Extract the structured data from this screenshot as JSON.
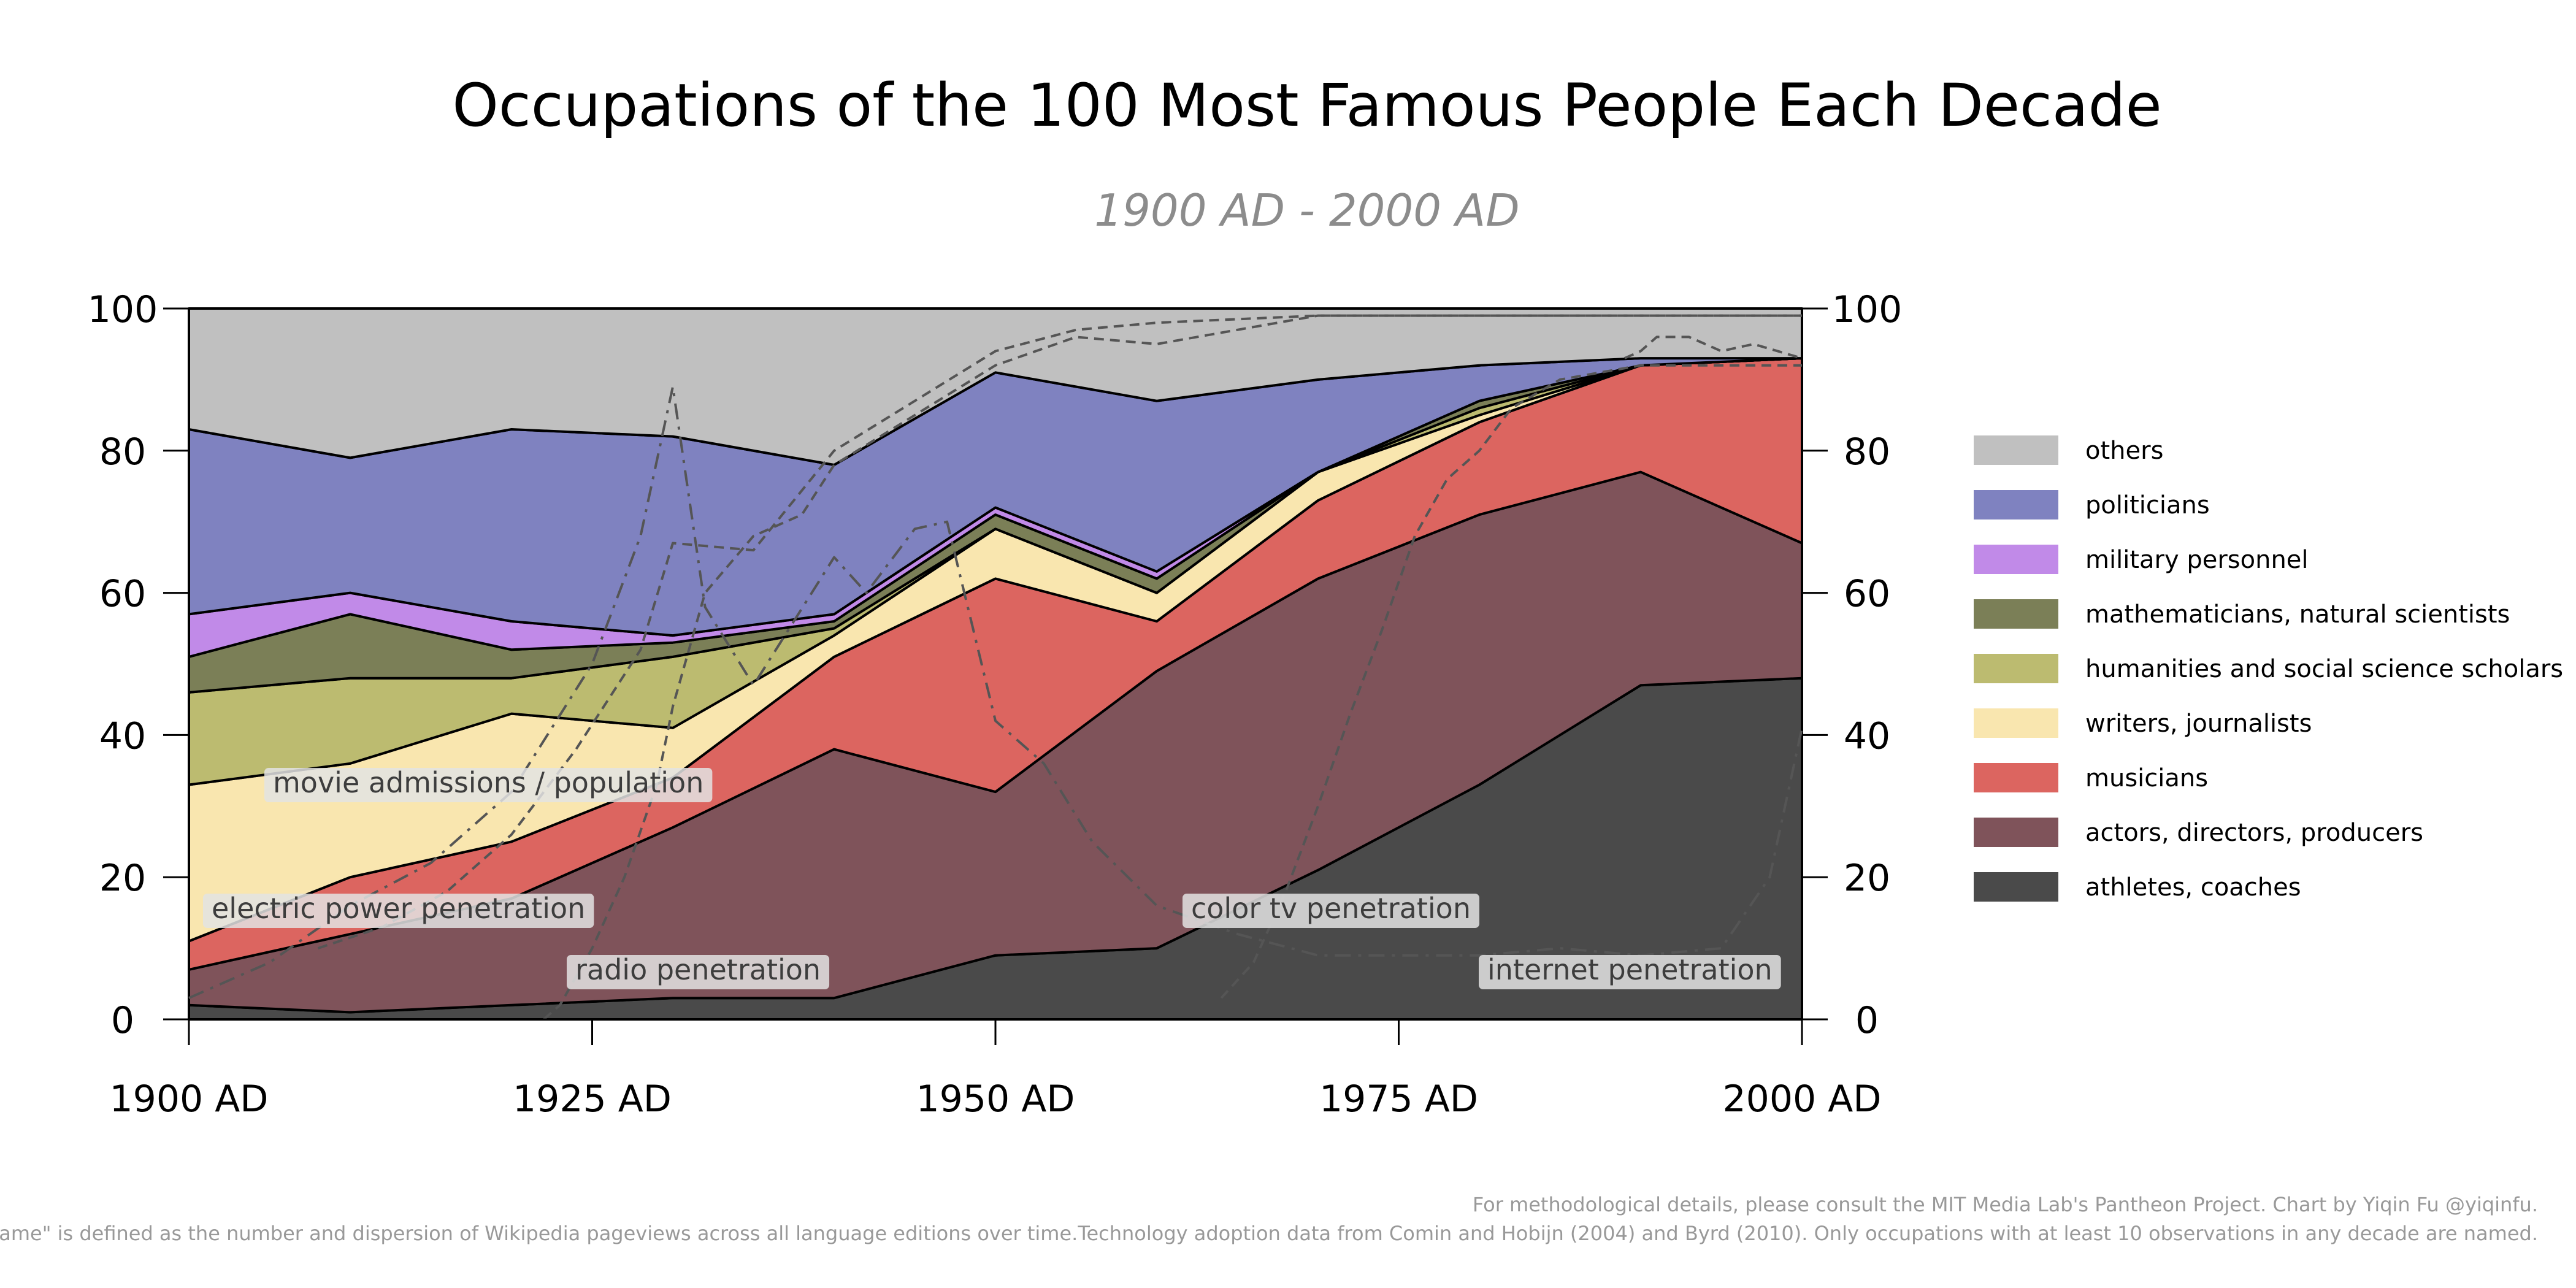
{
  "chart_data": {
    "type": "area",
    "title": "Occupations of the 100 Most Famous People Each Decade",
    "subtitle": "1900 AD - 2000 AD",
    "x": [
      1900,
      1910,
      1920,
      1930,
      1940,
      1950,
      1960,
      1970,
      1980,
      1990,
      2000
    ],
    "x_tick_values": [
      1900,
      1925,
      1950,
      1975,
      2000
    ],
    "x_tick_labels": [
      "1900 AD",
      "1925 AD",
      "1950 AD",
      "1975 AD",
      "2000 AD"
    ],
    "xlim": [
      1900,
      2000
    ],
    "ylim": [
      0,
      100
    ],
    "y_ticks": [
      0,
      20,
      40,
      60,
      80,
      100
    ],
    "stacked": true,
    "series": [
      {
        "name": "athletes, coaches",
        "color": "#4a4a4a",
        "values": [
          2,
          1,
          2,
          3,
          3,
          9,
          10,
          21,
          33,
          47,
          48
        ]
      },
      {
        "name": "actors, directors, producers",
        "color": "#7f535a",
        "values": [
          5,
          11,
          15,
          24,
          35,
          23,
          39,
          41,
          38,
          30,
          19
        ]
      },
      {
        "name": "musicians",
        "color": "#dc6560",
        "values": [
          4,
          8,
          8,
          7,
          13,
          30,
          7,
          11,
          13,
          15,
          26
        ]
      },
      {
        "name": "writers, journalists",
        "color": "#f9e6af",
        "values": [
          22,
          16,
          18,
          7,
          3,
          7,
          4,
          4,
          1,
          0,
          0
        ]
      },
      {
        "name": "humanities and social science scholars",
        "color": "#bcbb70",
        "values": [
          13,
          12,
          5,
          10,
          1,
          0,
          0,
          0,
          1,
          0,
          0
        ]
      },
      {
        "name": "mathematicians, natural scientists",
        "color": "#7b7f57",
        "values": [
          5,
          9,
          4,
          2,
          1,
          2,
          2,
          0,
          1,
          0,
          0
        ]
      },
      {
        "name": "military personnel",
        "color": "#c18ae8",
        "values": [
          6,
          3,
          4,
          1,
          1,
          1,
          1,
          0,
          0,
          0,
          0
        ]
      },
      {
        "name": "politicians",
        "color": "#7f82c0",
        "values": [
          26,
          19,
          27,
          28,
          21,
          19,
          24,
          13,
          5,
          1,
          0
        ]
      },
      {
        "name": "others",
        "color": "#c0c0c0",
        "values": [
          17,
          21,
          17,
          18,
          22,
          9,
          13,
          10,
          8,
          7,
          7
        ]
      }
    ],
    "legend_order": [
      "others",
      "politicians",
      "military personnel",
      "mathematicians, natural scientists",
      "humanities and social science scholars",
      "writers, journalists",
      "musicians",
      "actors, directors, producers",
      "athletes, coaches"
    ],
    "legend_position": "right",
    "overlay_lines": [
      {
        "label": "electric power penetration",
        "style": "dashed",
        "points": [
          [
            1908,
            10
          ],
          [
            1912,
            13
          ],
          [
            1916,
            18
          ],
          [
            1920,
            26
          ],
          [
            1924,
            38
          ],
          [
            1928,
            52
          ],
          [
            1930,
            67
          ],
          [
            1935,
            66
          ],
          [
            1940,
            80
          ],
          [
            1945,
            87
          ],
          [
            1950,
            94
          ],
          [
            1955,
            97
          ],
          [
            1960,
            98
          ],
          [
            1970,
            99
          ],
          [
            1980,
            99
          ],
          [
            1990,
            99
          ],
          [
            2000,
            99
          ]
        ]
      },
      {
        "label": "radio penetration",
        "style": "dashed",
        "points": [
          [
            1922,
            0
          ],
          [
            1923,
            2
          ],
          [
            1925,
            10
          ],
          [
            1927,
            20
          ],
          [
            1929,
            33
          ],
          [
            1930,
            44
          ],
          [
            1932,
            60
          ],
          [
            1935,
            68
          ],
          [
            1938,
            71
          ],
          [
            1940,
            78
          ],
          [
            1945,
            85
          ],
          [
            1950,
            92
          ],
          [
            1955,
            96
          ],
          [
            1960,
            95
          ],
          [
            1970,
            99
          ],
          [
            1980,
            99
          ],
          [
            1990,
            99
          ],
          [
            2000,
            99
          ]
        ]
      },
      {
        "label": "movie admissions / population",
        "style": "dashdot",
        "points": [
          [
            1900,
            3
          ],
          [
            1905,
            8
          ],
          [
            1910,
            16
          ],
          [
            1915,
            22
          ],
          [
            1920,
            32
          ],
          [
            1925,
            50
          ],
          [
            1928,
            68
          ],
          [
            1930,
            89
          ],
          [
            1932,
            58
          ],
          [
            1935,
            47
          ],
          [
            1940,
            65
          ],
          [
            1942,
            60
          ],
          [
            1945,
            69
          ],
          [
            1947,
            70
          ],
          [
            1950,
            42
          ],
          [
            1953,
            36
          ],
          [
            1956,
            25
          ],
          [
            1960,
            16
          ],
          [
            1965,
            12
          ],
          [
            1970,
            9
          ],
          [
            1975,
            9
          ],
          [
            1980,
            9
          ],
          [
            1985,
            10
          ],
          [
            1990,
            9
          ],
          [
            1995,
            10
          ],
          [
            1998,
            20
          ],
          [
            2000,
            41
          ]
        ]
      },
      {
        "label": "color tv penetration",
        "style": "dashed",
        "points": [
          [
            1964,
            3
          ],
          [
            1966,
            8
          ],
          [
            1968,
            18
          ],
          [
            1970,
            30
          ],
          [
            1972,
            43
          ],
          [
            1974,
            55
          ],
          [
            1976,
            68
          ],
          [
            1978,
            76
          ],
          [
            1980,
            80
          ],
          [
            1982,
            86
          ],
          [
            1985,
            90
          ],
          [
            1990,
            92
          ],
          [
            2000,
            92
          ]
        ]
      },
      {
        "label": "internet penetration",
        "style": "dashed",
        "points": [
          [
            1989,
            93
          ],
          [
            1990,
            94
          ],
          [
            1991,
            96
          ],
          [
            1993,
            96
          ],
          [
            1995,
            94
          ],
          [
            1997,
            95
          ],
          [
            2000,
            93
          ]
        ]
      }
    ],
    "annotations": [
      {
        "text": "movie admissions / population"
      },
      {
        "text": "electric power penetration"
      },
      {
        "text": "radio penetration"
      },
      {
        "text": "color tv penetration"
      },
      {
        "text": "internet penetration"
      }
    ],
    "footer": [
      "For methodological details, please consult the MIT Media Lab's Pantheon Project. Chart by Yiqin Fu @yiqinfu.",
      "\"Fame\" is defined as the number and dispersion of Wikipedia pageviews across all language editions over time.Technology adoption data from Comin and Hobijn (2004) and Byrd (2010). Only occupations with at least 10 observations in any decade are named."
    ]
  }
}
